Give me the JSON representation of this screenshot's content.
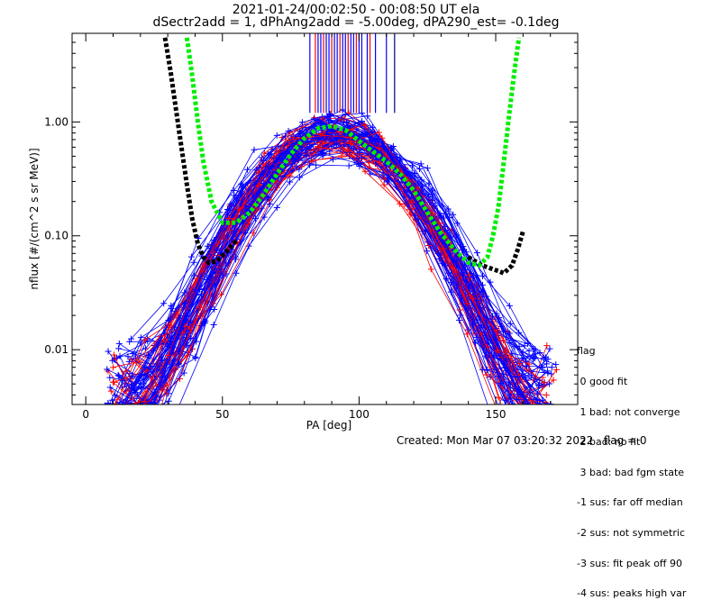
{
  "chart_data": {
    "type": "scatter",
    "title": [
      "2021-01-24/00:02:50 - 00:08:50 UT ela",
      "dSectr2add = 1, dPhAng2add = -5.00deg, dPA290_est=  -0.1deg"
    ],
    "xlabel": "PA [deg]",
    "ylabel": "nflux [#/(cm^2 s sr MeV)]",
    "xlim": [
      -5,
      180
    ],
    "ylim": [
      0.0033,
      6.0
    ],
    "yscale": "log",
    "x_ticks": [
      0,
      50,
      100,
      150
    ],
    "y_ticks": [
      {
        "value": 0.01,
        "label": "0.01"
      },
      {
        "value": 0.1,
        "label": "0.10"
      },
      {
        "value": 1.0,
        "label": "1.00"
      }
    ],
    "fit_curves": [
      {
        "color": "#000000",
        "x": [
          29,
          31,
          33,
          35,
          37,
          39,
          41,
          43,
          45,
          48,
          52,
          55
        ],
        "y": [
          5.5,
          2.8,
          1.3,
          0.6,
          0.28,
          0.14,
          0.085,
          0.065,
          0.058,
          0.06,
          0.075,
          0.09
        ]
      },
      {
        "color": "#000000",
        "x": [
          140,
          145,
          150,
          153,
          156,
          158,
          160
        ],
        "y": [
          0.065,
          0.055,
          0.05,
          0.047,
          0.055,
          0.075,
          0.11
        ]
      },
      {
        "color": "#00ee00",
        "x": [
          37,
          39,
          41,
          43,
          46,
          50,
          55,
          60,
          65,
          70,
          75,
          80,
          85,
          90,
          95,
          100,
          105,
          110,
          115,
          120,
          125,
          130,
          135,
          140,
          144,
          147,
          149,
          151,
          153,
          155,
          157,
          158.5
        ],
        "y": [
          5.5,
          2.5,
          1.0,
          0.45,
          0.2,
          0.13,
          0.13,
          0.16,
          0.23,
          0.35,
          0.52,
          0.72,
          0.88,
          0.92,
          0.85,
          0.68,
          0.55,
          0.45,
          0.35,
          0.25,
          0.16,
          0.105,
          0.075,
          0.058,
          0.055,
          0.065,
          0.1,
          0.18,
          0.45,
          1.2,
          3.0,
          5.5
        ]
      }
    ],
    "top_markers": {
      "red": [
        84,
        87,
        90,
        93,
        96,
        99,
        104
      ],
      "blue": [
        82,
        85,
        86,
        88,
        89,
        91,
        92,
        94,
        95,
        97,
        98,
        100,
        101,
        103,
        106,
        110
      ],
      "navy": [
        113
      ]
    },
    "legend": {
      "title": "flag",
      "entries": [
        " 0 good fit",
        " 1 bad: not converge",
        " 2 bad: no fit",
        " 3 bad: bad fgm state",
        "-1 sus: far off median",
        "-2 sus: not symmetric",
        "-3 sus: fit peak off 90",
        "-4 sus: peaks high var"
      ]
    },
    "footer": "Created: Mon Mar 07 03:20:32 2022   flag = 0"
  }
}
